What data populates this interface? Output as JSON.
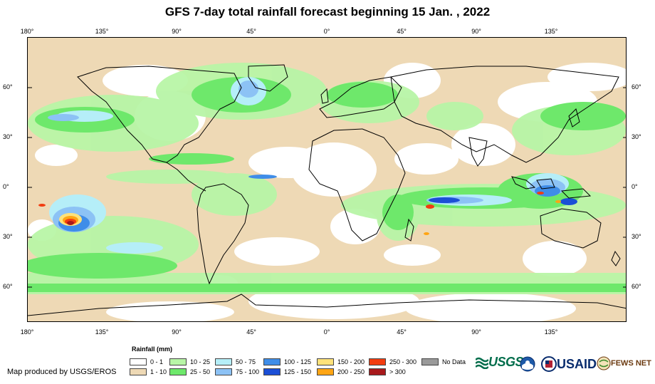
{
  "title": "GFS 7-day total rainfall forecast beginning 15 Jan. , 2022",
  "axes": {
    "lon_labels": [
      "180°",
      "135°",
      "90°",
      "45°",
      "0°",
      "45°",
      "90°",
      "135°"
    ],
    "lat_labels": [
      "60°",
      "30°",
      "0°",
      "30°",
      "60°"
    ]
  },
  "legend": {
    "title": "Rainfall (mm)",
    "items": [
      {
        "label": "0 - 1",
        "color": "#ffffff"
      },
      {
        "label": "1 - 10",
        "color": "#eed9b5"
      },
      {
        "label": "10 - 25",
        "color": "#b8f5a7"
      },
      {
        "label": "25 - 50",
        "color": "#6ee86b"
      },
      {
        "label": "50 - 75",
        "color": "#b5eef8"
      },
      {
        "label": "75 - 100",
        "color": "#8cc2f5"
      },
      {
        "label": "100 - 125",
        "color": "#3f8de8"
      },
      {
        "label": "125 - 150",
        "color": "#1b4fd6"
      },
      {
        "label": "150 - 200",
        "color": "#ffe27a"
      },
      {
        "label": "200 - 250",
        "color": "#ffa514"
      },
      {
        "label": "250 - 300",
        "color": "#f23c10"
      },
      {
        "label": "> 300",
        "color": "#a8191b"
      },
      {
        "label": "No Data",
        "color": "#9a9a9a"
      }
    ]
  },
  "credit": "Map produced by USGS/EROS",
  "logos": {
    "usgs": "USGS",
    "usaid": "USAID",
    "fews": "FEWS NET"
  }
}
